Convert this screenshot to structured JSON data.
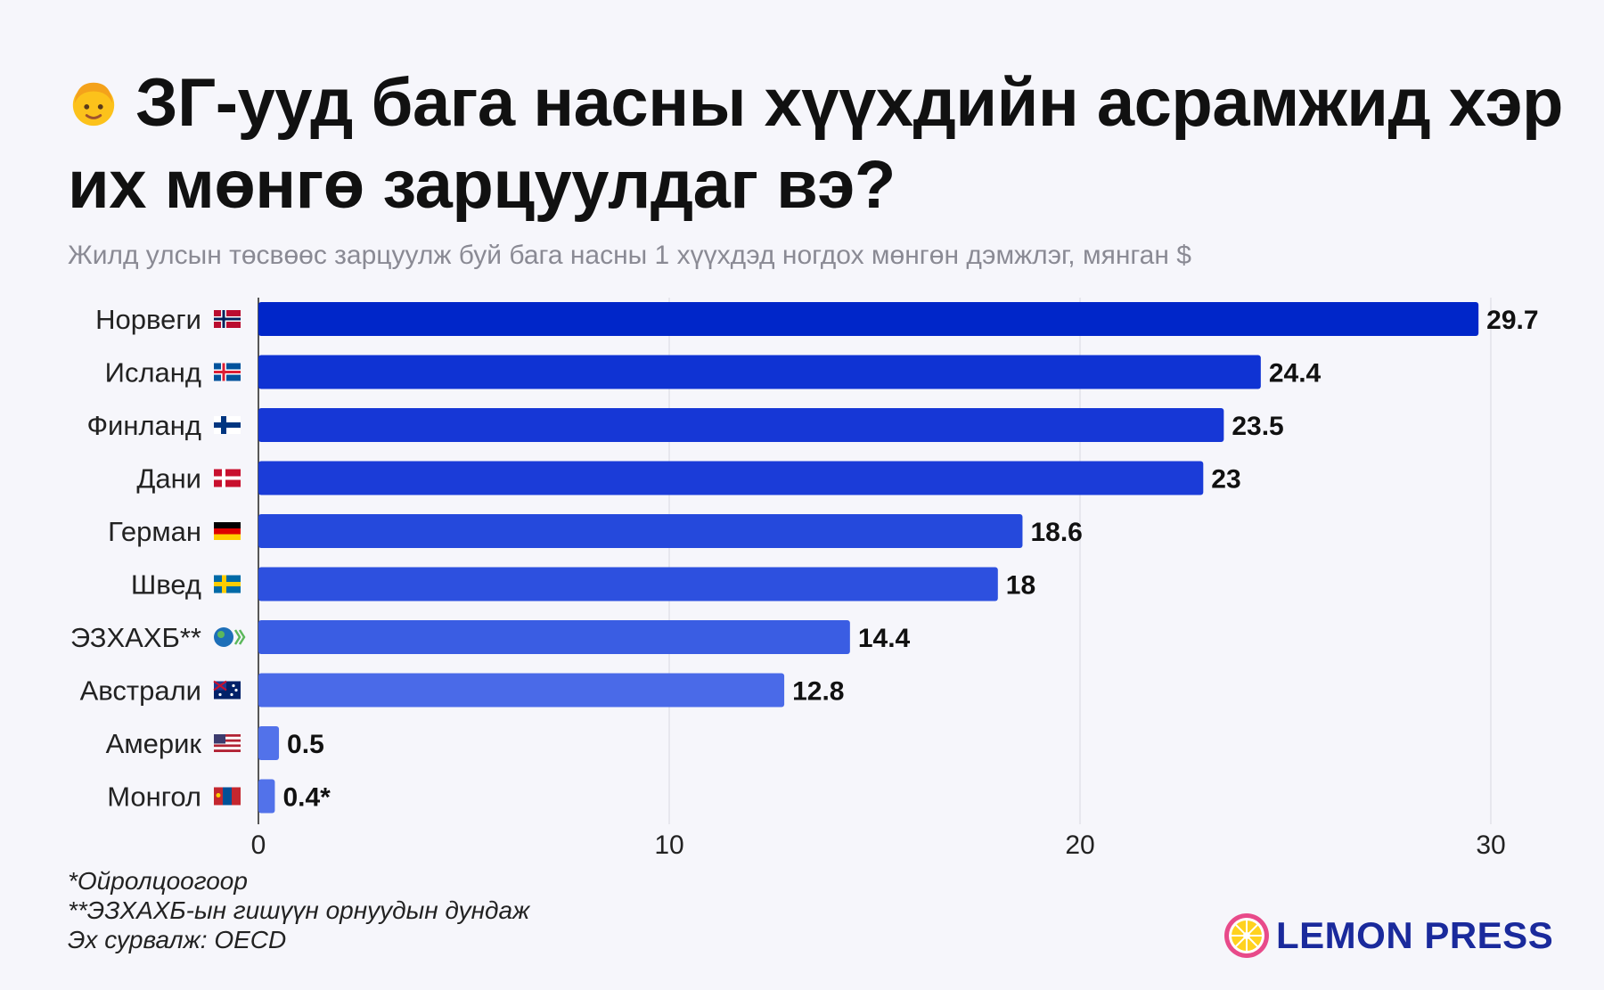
{
  "header": {
    "title": "ЗГ-ууд бага насны хүүхдийн асрамжид хэр их мөнгө зарцуулдаг вэ?",
    "title_icon": "child-face-emoji",
    "subtitle": "Жилд улсын төсвөөс зарцуулж буй бага насны 1 хүүхдэд ногдох мөнгөн дэмжлэг, мянган $"
  },
  "chart_data": {
    "type": "bar",
    "orientation": "horizontal",
    "categories": [
      "Норвеги",
      "Исланд",
      "Финланд",
      "Дани",
      "Герман",
      "Швед",
      "ЭЗХАХБ**",
      "Австрали",
      "Америк",
      "Монгол"
    ],
    "values": [
      29.7,
      24.4,
      23.5,
      23,
      18.6,
      18,
      14.4,
      12.8,
      0.5,
      0.4
    ],
    "value_labels": [
      "29.7",
      "24.4",
      "23.5",
      "23",
      "18.6",
      "18",
      "14.4",
      "12.8",
      "0.5",
      "0.4*"
    ],
    "flags": [
      "flag-norway-icon",
      "flag-iceland-icon",
      "flag-finland-icon",
      "flag-denmark-icon",
      "flag-germany-icon",
      "flag-sweden-icon",
      "oecd-logo-icon",
      "flag-australia-icon",
      "flag-usa-icon",
      "flag-mongolia-icon"
    ],
    "xlim": [
      0,
      30
    ],
    "xticks": [
      0,
      10,
      20,
      30
    ],
    "grid": true,
    "bar_colors": [
      "#0026c9",
      "#0f33d3",
      "#1637d6",
      "#1b3cd8",
      "#2549dc",
      "#2d50df",
      "#3a5de3",
      "#4a6ae8",
      "#5272ea",
      "#5272ea"
    ]
  },
  "footnotes": {
    "line1": "*Ойролцоогоор",
    "line2": "**ЭЗХАХБ-ын гишүүн орнуудын дундаж",
    "line3": "Эх сурвалж: OECD"
  },
  "brand": {
    "name": "LEMON PRESS",
    "text_color": "#1a2a9c",
    "accent_color": "#e84a8a"
  }
}
